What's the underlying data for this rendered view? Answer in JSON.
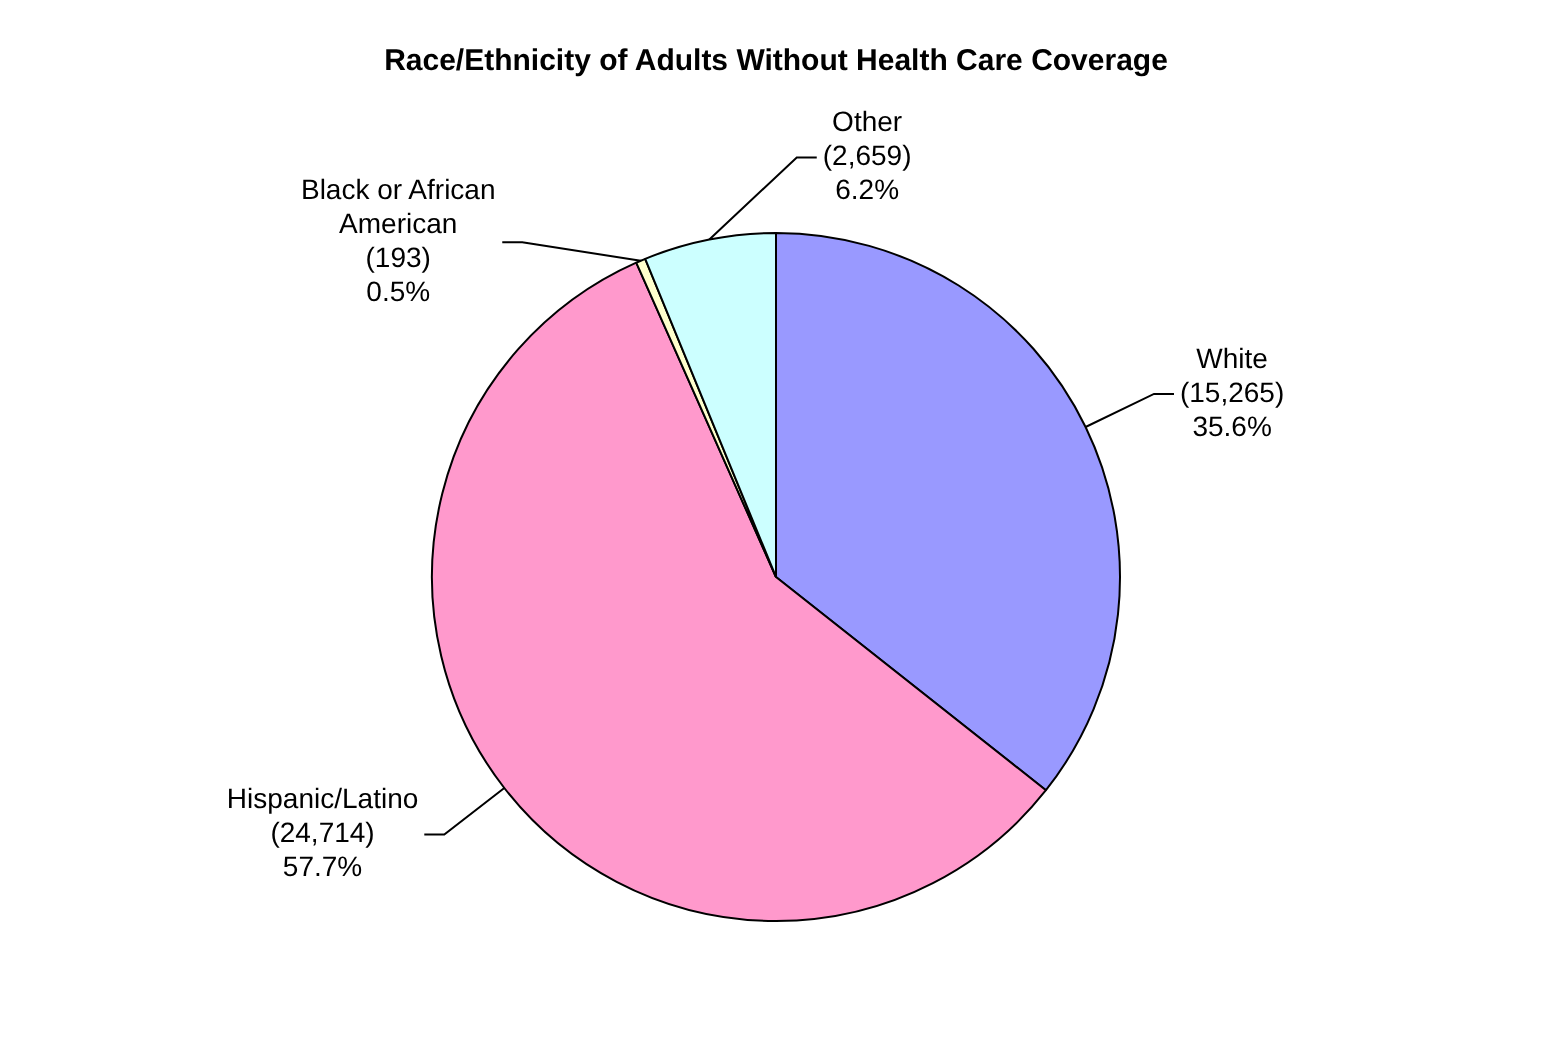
{
  "chart_data": {
    "type": "pie",
    "title": "Race/Ethnicity of Adults Without Health Care Coverage",
    "categories": [
      "White",
      "Hispanic/Latino",
      "Black or African American",
      "Other"
    ],
    "values": [
      15265,
      24714,
      193,
      2659
    ],
    "colors": [
      "#9999ff",
      "#ff99cc",
      "#ffffcc",
      "#ccffff"
    ],
    "value_labels": [
      "(15,265)\n35.6%",
      "(24,714)\n57.7%",
      "(193)\n0.5%",
      "(2,659)\n6.2%"
    ]
  }
}
